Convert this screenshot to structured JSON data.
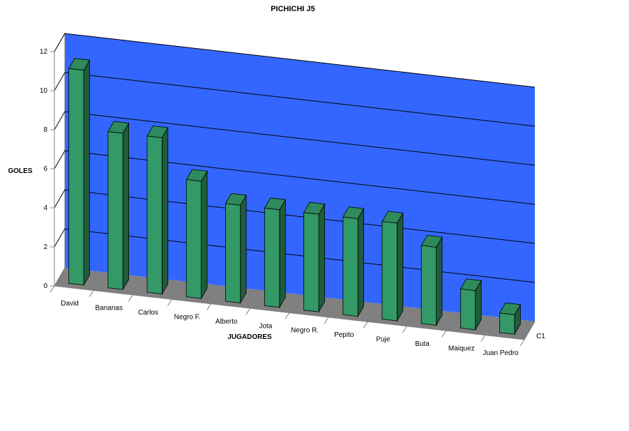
{
  "chart_data": {
    "type": "bar",
    "title": "PICHICHI J5",
    "xlabel": "JUGADORES",
    "ylabel": "GOLES",
    "depth_label": "C1",
    "ylim": [
      0,
      12
    ],
    "yticks": [
      0,
      2,
      4,
      6,
      8,
      10,
      12
    ],
    "categories": [
      "David",
      "Bananas",
      "Carlos",
      "Negro F.",
      "Alberto",
      "Jota",
      "Negro R.",
      "Pepito",
      "Puje",
      "Buta",
      "Maiquez",
      "Juan Pedro"
    ],
    "values": [
      11,
      8,
      8,
      6,
      5,
      5,
      5,
      5,
      5,
      4,
      2,
      1
    ],
    "grid": true,
    "colors": {
      "back_wall": "#3366ff",
      "floor": "#808080",
      "bar_front": "#339966",
      "bar_side": "#1f5c3d",
      "bar_top": "#2e8a5c",
      "grid_line": "#000000",
      "axis_line": "#808080"
    }
  }
}
